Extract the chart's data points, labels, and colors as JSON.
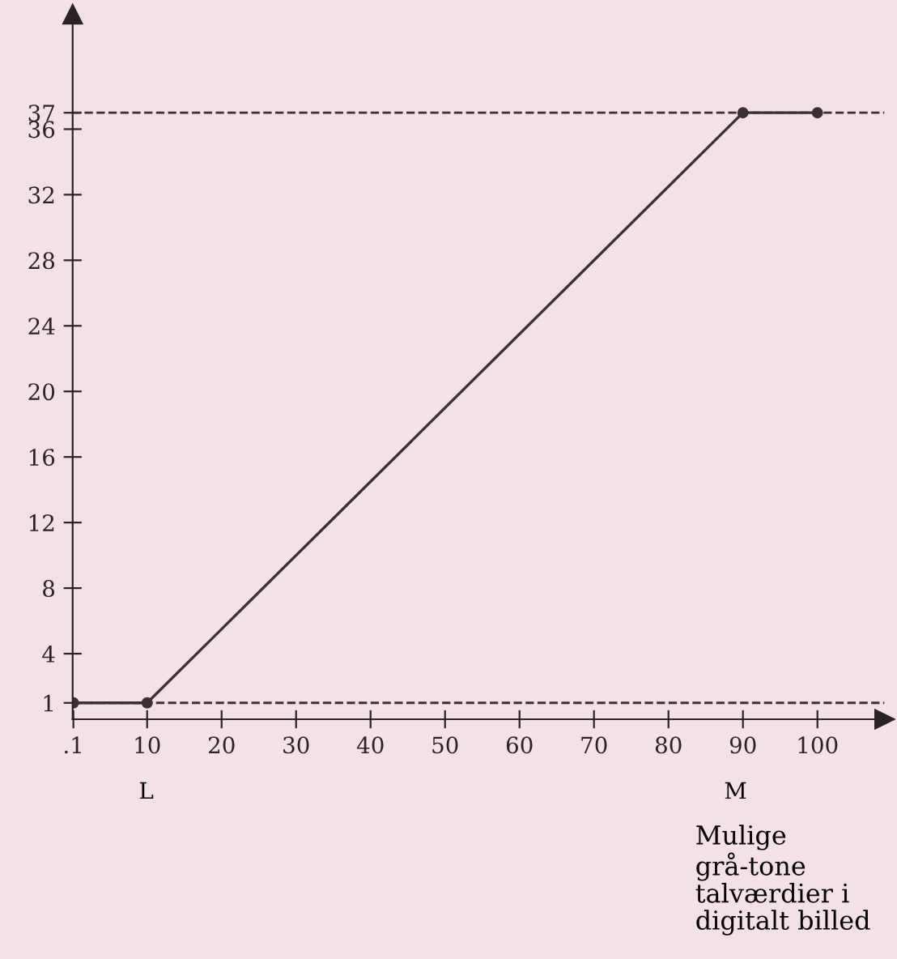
{
  "chart_data": {
    "type": "line",
    "xlabel": "Mulige grå-tone talværdier i digitalt billed",
    "x": [
      0.1,
      10,
      90,
      100
    ],
    "series": [
      {
        "color": "#3a3035",
        "values": [
          1,
          1,
          37,
          37
        ]
      }
    ],
    "marker": "circle",
    "line_style": "solid",
    "grid": false,
    "legend": false,
    "xlim": [
      0,
      109
    ],
    "ylim": [
      0,
      43
    ],
    "xticks": [
      {
        "value": 0.1,
        "label": ".1"
      },
      10,
      20,
      30,
      40,
      50,
      60,
      70,
      80,
      90,
      100
    ],
    "yticks": [
      1,
      4,
      8,
      12,
      16,
      20,
      24,
      28,
      32,
      36,
      37
    ],
    "ref_lines": [
      {
        "axis": "y",
        "value": 37,
        "line_style": "dashed",
        "color": "#3a3035"
      },
      {
        "axis": "y",
        "value": 1,
        "line_style": "dashed",
        "color": "#3a3035"
      }
    ],
    "annotations": [
      "L",
      "M"
    ]
  }
}
